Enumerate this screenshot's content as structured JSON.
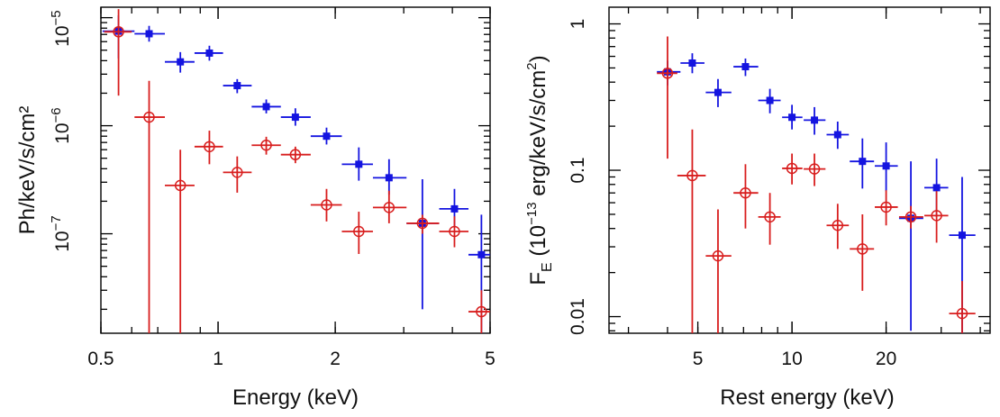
{
  "chart_data": [
    {
      "type": "scatter",
      "title": "",
      "xlabel": "Energy (keV)",
      "ylabel": "Ph/keV/s/cm²",
      "x_scale": "log",
      "y_scale": "log",
      "xlim": [
        0.5,
        5
      ],
      "ylim": [
        1.2e-08,
        1.25e-05
      ],
      "x_ticks": [
        {
          "value": 0.5,
          "label": "0.5"
        },
        {
          "value": 1,
          "label": "1"
        },
        {
          "value": 2,
          "label": "2"
        },
        {
          "value": 5,
          "label": "5"
        }
      ],
      "y_ticks": [
        {
          "value": 1e-05,
          "base": "10",
          "exp": "−5",
          "label_side": "top"
        },
        {
          "value": 1e-06,
          "base": "10",
          "exp": "−6",
          "label_side": "left"
        },
        {
          "value": 1e-07,
          "base": "10",
          "exp": "−7",
          "label_side": "left"
        }
      ],
      "series": [
        {
          "color": "#1414e0",
          "marker": "filled-square",
          "points": [
            {
              "x": 0.555,
              "y": 7.5e-06,
              "xerr": [
                0.505,
                0.61
              ],
              "yerr": [
                4.2e-06,
                1.05e-05
              ]
            },
            {
              "x": 0.665,
              "y": 7.1e-06,
              "xerr": [
                0.61,
                0.73
              ],
              "yerr": [
                6e-06,
                8.4e-06
              ]
            },
            {
              "x": 0.8,
              "y": 3.9e-06,
              "xerr": [
                0.73,
                0.87
              ],
              "yerr": [
                3.1e-06,
                4.8e-06
              ]
            },
            {
              "x": 0.95,
              "y": 4.7e-06,
              "xerr": [
                0.87,
                1.03
              ],
              "yerr": [
                4e-06,
                5.5e-06
              ]
            },
            {
              "x": 1.12,
              "y": 2.35e-06,
              "xerr": [
                1.03,
                1.22
              ],
              "yerr": [
                2e-06,
                2.7e-06
              ]
            },
            {
              "x": 1.33,
              "y": 1.5e-06,
              "xerr": [
                1.22,
                1.45
              ],
              "yerr": [
                1.3e-06,
                1.75e-06
              ]
            },
            {
              "x": 1.58,
              "y": 1.2e-06,
              "xerr": [
                1.45,
                1.73
              ],
              "yerr": [
                1e-06,
                1.45e-06
              ]
            },
            {
              "x": 1.9,
              "y": 8e-07,
              "xerr": [
                1.73,
                2.08
              ],
              "yerr": [
                6.7e-07,
                9.6e-07
              ]
            },
            {
              "x": 2.3,
              "y": 4.4e-07,
              "xerr": [
                2.08,
                2.5
              ],
              "yerr": [
                3.1e-07,
                6.3e-07
              ]
            },
            {
              "x": 2.75,
              "y": 3.3e-07,
              "xerr": [
                2.5,
                3.05
              ],
              "yerr": [
                2.3e-07,
                4.9e-07
              ]
            },
            {
              "x": 3.35,
              "y": 1.25e-07,
              "xerr": [
                3.05,
                3.7
              ],
              "yerr": [
                2e-08,
                3.2e-07
              ]
            },
            {
              "x": 4.05,
              "y": 1.7e-07,
              "xerr": [
                3.7,
                4.4
              ],
              "yerr": [
                1.15e-07,
                2.6e-07
              ]
            },
            {
              "x": 4.75,
              "y": 6.4e-08,
              "xerr": [
                4.4,
                5.0
              ],
              "yerr": [
                1.2e-08,
                1.5e-07
              ]
            }
          ]
        },
        {
          "color": "#d81e1e",
          "marker": "open-circle",
          "points": [
            {
              "x": 0.555,
              "y": 7.4e-06,
              "xerr": [
                0.51,
                0.6
              ],
              "yerr": [
                1.9e-06,
                1.2e-05
              ]
            },
            {
              "x": 0.665,
              "y": 1.2e-06,
              "xerr": [
                0.61,
                0.73
              ],
              "yerr": [
                1.2e-08,
                2.6e-06
              ]
            },
            {
              "x": 0.8,
              "y": 2.8e-07,
              "xerr": [
                0.73,
                0.87
              ],
              "yerr": [
                1.2e-08,
                6e-07
              ]
            },
            {
              "x": 0.95,
              "y": 6.4e-07,
              "xerr": [
                0.87,
                1.03
              ],
              "yerr": [
                4.4e-07,
                9e-07
              ]
            },
            {
              "x": 1.12,
              "y": 3.7e-07,
              "xerr": [
                1.03,
                1.22
              ],
              "yerr": [
                2.4e-07,
                5.2e-07
              ]
            },
            {
              "x": 1.33,
              "y": 6.6e-07,
              "xerr": [
                1.22,
                1.45
              ],
              "yerr": [
                5.4e-07,
                7.9e-07
              ]
            },
            {
              "x": 1.58,
              "y": 5.4e-07,
              "xerr": [
                1.45,
                1.73
              ],
              "yerr": [
                4.5e-07,
                6.4e-07
              ]
            },
            {
              "x": 1.9,
              "y": 1.85e-07,
              "xerr": [
                1.73,
                2.08
              ],
              "yerr": [
                1.3e-07,
                2.6e-07
              ]
            },
            {
              "x": 2.3,
              "y": 1.05e-07,
              "xerr": [
                2.08,
                2.5
              ],
              "yerr": [
                6.5e-08,
                1.6e-07
              ]
            },
            {
              "x": 2.75,
              "y": 1.75e-07,
              "xerr": [
                2.5,
                3.05
              ],
              "yerr": [
                1.25e-07,
                2.5e-07
              ]
            },
            {
              "x": 3.35,
              "y": 1.25e-07,
              "xerr": [
                3.05,
                3.7
              ],
              "yerr": [
                1e-07,
                1.5e-07
              ]
            },
            {
              "x": 4.05,
              "y": 1.05e-07,
              "xerr": [
                3.7,
                4.4
              ],
              "yerr": [
                7.5e-08,
                1.45e-07
              ]
            },
            {
              "x": 4.75,
              "y": 1.9e-08,
              "xerr": [
                4.4,
                5.0
              ],
              "yerr": [
                1.2e-08,
                3e-08
              ]
            }
          ]
        }
      ]
    },
    {
      "type": "scatter",
      "title": "",
      "xlabel": "Rest energy (keV)",
      "ylabel": {
        "main": "F",
        "sub": "E",
        "units_pre": " (10",
        "units_exp": "−13",
        "units_mid": " erg/keV/s/cm",
        "units_exp2": "2",
        "units_post": ")"
      },
      "x_scale": "log",
      "y_scale": "log",
      "xlim": [
        2.6,
        43
      ],
      "ylim": [
        0.0077,
        1.3
      ],
      "x_ticks": [
        {
          "value": 5,
          "label": "5"
        },
        {
          "value": 10,
          "label": "10"
        },
        {
          "value": 20,
          "label": "20"
        }
      ],
      "y_ticks": [
        {
          "value": 1,
          "label": "1"
        },
        {
          "value": 0.1,
          "label": "0.1"
        },
        {
          "value": 0.01,
          "label": "0.01"
        }
      ],
      "series": [
        {
          "color": "#1414e0",
          "marker": "filled-square",
          "points": [
            {
              "x": 4.0,
              "y": 0.47,
              "xerr": [
                3.7,
                4.4
              ],
              "yerr": [
                0.38,
                0.56
              ]
            },
            {
              "x": 4.8,
              "y": 0.54,
              "xerr": [
                4.4,
                5.25
              ],
              "yerr": [
                0.46,
                0.63
              ]
            },
            {
              "x": 5.8,
              "y": 0.34,
              "xerr": [
                5.3,
                6.4
              ],
              "yerr": [
                0.27,
                0.42
              ]
            },
            {
              "x": 7.1,
              "y": 0.51,
              "xerr": [
                6.5,
                7.8
              ],
              "yerr": [
                0.44,
                0.58
              ]
            },
            {
              "x": 8.5,
              "y": 0.3,
              "xerr": [
                7.8,
                9.2
              ],
              "yerr": [
                0.245,
                0.36
              ]
            },
            {
              "x": 10.0,
              "y": 0.23,
              "xerr": [
                9.3,
                10.8
              ],
              "yerr": [
                0.19,
                0.28
              ]
            },
            {
              "x": 11.8,
              "y": 0.22,
              "xerr": [
                10.9,
                12.8
              ],
              "yerr": [
                0.175,
                0.27
              ]
            },
            {
              "x": 14.0,
              "y": 0.175,
              "xerr": [
                12.9,
                15.2
              ],
              "yerr": [
                0.14,
                0.215
              ]
            },
            {
              "x": 16.8,
              "y": 0.115,
              "xerr": [
                15.3,
                18.3
              ],
              "yerr": [
                0.075,
                0.165
              ]
            },
            {
              "x": 20.0,
              "y": 0.107,
              "xerr": [
                18.4,
                21.8
              ],
              "yerr": [
                0.072,
                0.155
              ]
            },
            {
              "x": 24.0,
              "y": 0.047,
              "xerr": [
                22.0,
                26.3
              ],
              "yerr": [
                0.008,
                0.115
              ]
            },
            {
              "x": 29.0,
              "y": 0.076,
              "xerr": [
                26.5,
                31.6
              ],
              "yerr": [
                0.048,
                0.12
              ]
            },
            {
              "x": 35.0,
              "y": 0.036,
              "xerr": [
                31.8,
                38.6
              ],
              "yerr": [
                0.0077,
                0.09
              ]
            }
          ]
        },
        {
          "color": "#d81e1e",
          "marker": "open-circle",
          "points": [
            {
              "x": 4.0,
              "y": 0.46,
              "xerr": [
                3.7,
                4.3
              ],
              "yerr": [
                0.12,
                0.82
              ]
            },
            {
              "x": 4.8,
              "y": 0.092,
              "xerr": [
                4.3,
                5.3
              ],
              "yerr": [
                0.0077,
                0.19
              ]
            },
            {
              "x": 5.8,
              "y": 0.026,
              "xerr": [
                5.3,
                6.4
              ],
              "yerr": [
                0.0077,
                0.054
              ]
            },
            {
              "x": 7.1,
              "y": 0.07,
              "xerr": [
                6.5,
                7.8
              ],
              "yerr": [
                0.04,
                0.11
              ]
            },
            {
              "x": 8.5,
              "y": 0.048,
              "xerr": [
                7.8,
                9.2
              ],
              "yerr": [
                0.031,
                0.07
              ]
            },
            {
              "x": 10.0,
              "y": 0.103,
              "xerr": [
                9.3,
                10.8
              ],
              "yerr": [
                0.08,
                0.13
              ]
            },
            {
              "x": 11.8,
              "y": 0.102,
              "xerr": [
                10.9,
                12.8
              ],
              "yerr": [
                0.078,
                0.13
              ]
            },
            {
              "x": 14.0,
              "y": 0.042,
              "xerr": [
                12.9,
                15.2
              ],
              "yerr": [
                0.029,
                0.059
              ]
            },
            {
              "x": 16.8,
              "y": 0.029,
              "xerr": [
                15.3,
                18.3
              ],
              "yerr": [
                0.015,
                0.05
              ]
            },
            {
              "x": 20.0,
              "y": 0.056,
              "xerr": [
                18.4,
                21.8
              ],
              "yerr": [
                0.042,
                0.073
              ]
            },
            {
              "x": 24.0,
              "y": 0.048,
              "xerr": [
                22.0,
                26.3
              ],
              "yerr": [
                0.04,
                0.057
              ]
            },
            {
              "x": 29.0,
              "y": 0.049,
              "xerr": [
                26.5,
                31.6
              ],
              "yerr": [
                0.032,
                0.072
              ]
            },
            {
              "x": 35.0,
              "y": 0.0105,
              "xerr": [
                31.8,
                38.6
              ],
              "yerr": [
                0.0077,
                0.0175
              ]
            }
          ]
        }
      ]
    }
  ]
}
